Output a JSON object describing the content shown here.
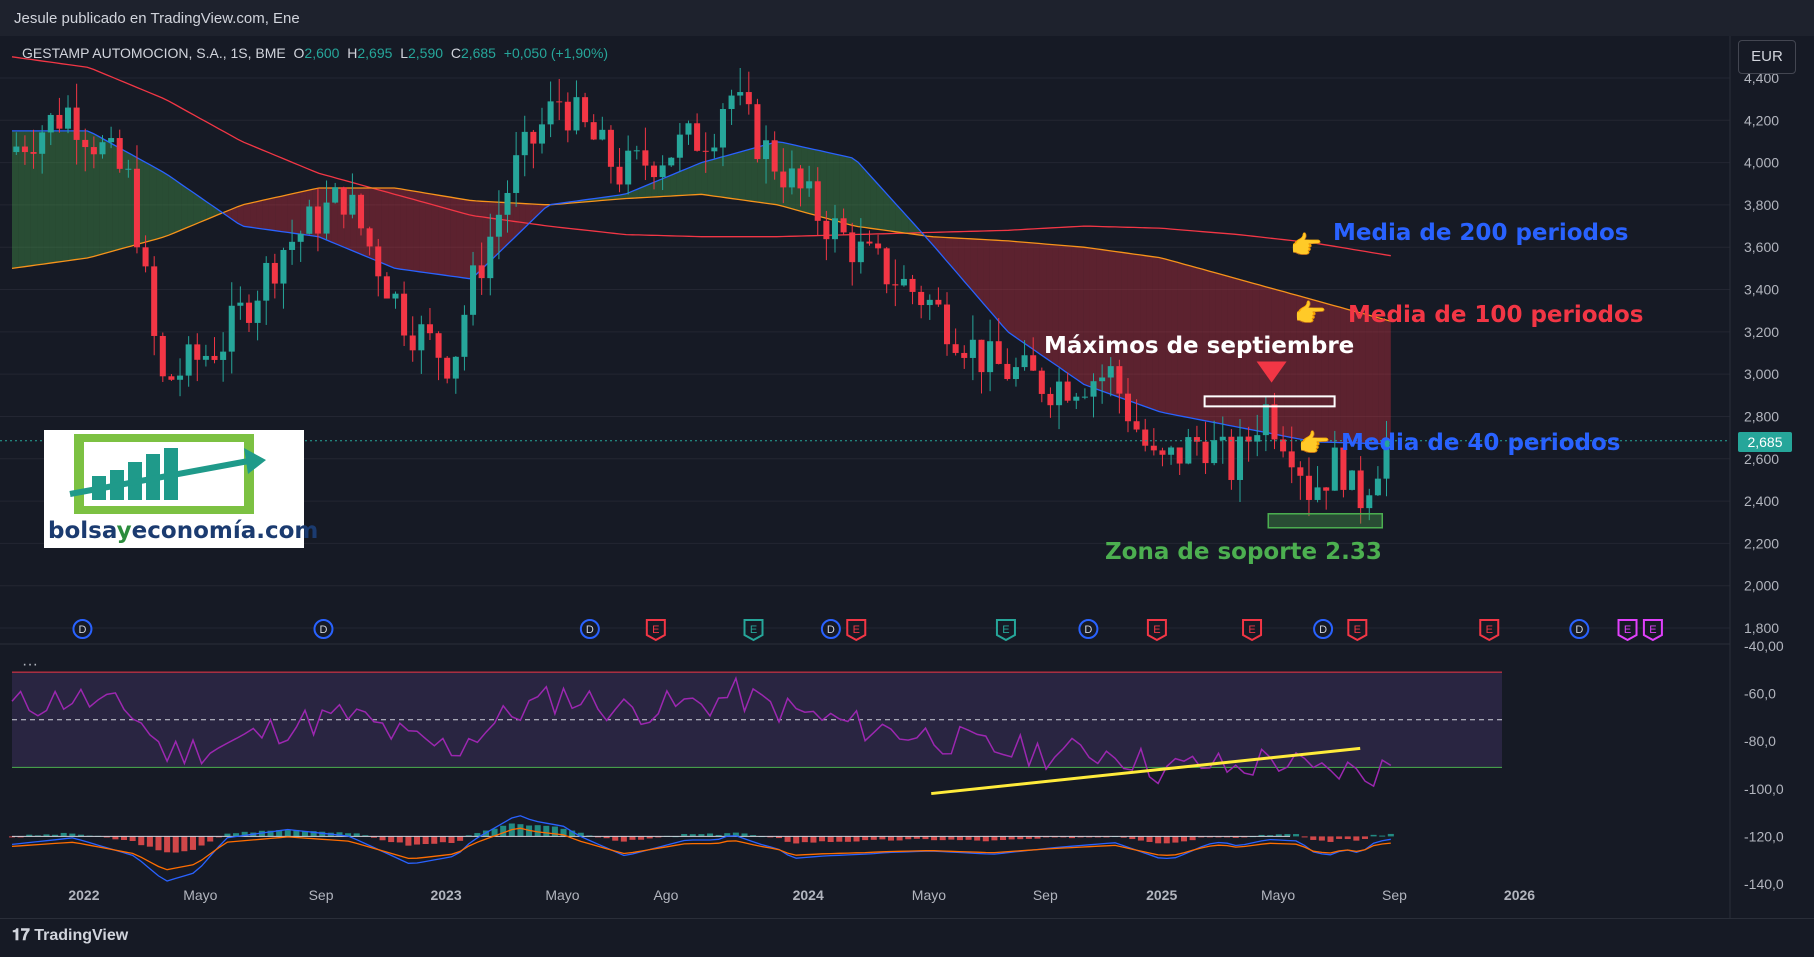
{
  "header": {
    "published": "Jesule publicado en TradingView.com, Ene"
  },
  "legend": {
    "symbol": "GESTAMP AUTOMOCION, S.A., 1S, BME",
    "open_label": "O",
    "open": "2,600",
    "high_label": "H",
    "high": "2,695",
    "low_label": "L",
    "low": "2,590",
    "close_label": "C",
    "close": "2,685",
    "change": "+0,050 (+1,90%)"
  },
  "currency": "EUR",
  "last_price": "2,685",
  "annotations": {
    "ma200": "Media de 200 periodos",
    "ma100": "Media de 100 periodos",
    "ma40": "Media de 40 periodos",
    "sept_max": "Máximos de septiembre",
    "support": "Zona de soporte 2.33"
  },
  "logo": {
    "brand_a": "bolsa",
    "brand_y": "y",
    "brand_b": "economía",
    "brand_c": ".com"
  },
  "footer": {
    "tradingview": "TradingView"
  },
  "colors": {
    "up": "#26a69a",
    "down": "#f23645",
    "ma40": "#2962ff",
    "ma100": "#f7931a",
    "ma200": "#f23645",
    "rsi": "#9c27b0",
    "trend": "#ffeb3b"
  },
  "chart_data": {
    "type": "candlestick",
    "title": "GESTAMP AUTOMOCION, S.A., 1S, BME",
    "x_ticks": [
      "2022",
      "Mayo",
      "Sep",
      "2023",
      "Mayo",
      "Ago",
      "2024",
      "Mayo",
      "Sep",
      "2025",
      "Mayo",
      "Sep",
      "2026"
    ],
    "y_ticks": [
      "4,400",
      "4,200",
      "4,000",
      "3,800",
      "3,600",
      "3,400",
      "3,200",
      "3,000",
      "2,800",
      "2,600",
      "2,400",
      "2,200",
      "2,000",
      "1,800"
    ],
    "ylim": [
      1.75,
      4.45
    ],
    "indicator_ticks": [
      "-40,00",
      "-60,0",
      "-80,0",
      "-100,0",
      "-120,0",
      "-140,0"
    ],
    "price_path_x": [
      0,
      0.04,
      0.08,
      0.1,
      0.14,
      0.18,
      0.22,
      0.26,
      0.29,
      0.3,
      0.33,
      0.36,
      0.4,
      0.46,
      0.47,
      0.49,
      0.53,
      0.56,
      0.6,
      0.64,
      0.68,
      0.72,
      0.75,
      0.78,
      0.8,
      0.82,
      0.84,
      0.85,
      0.87,
      0.88,
      0.9
    ],
    "price_path_y": [
      4.05,
      4.25,
      3.9,
      2.95,
      3.15,
      3.6,
      3.85,
      3.25,
      3.05,
      3.35,
      3.95,
      4.3,
      3.95,
      4.15,
      4.35,
      4.1,
      3.75,
      3.55,
      3.35,
      3.05,
      2.95,
      3.0,
      2.55,
      2.7,
      2.55,
      2.85,
      2.65,
      2.45,
      2.6,
      2.38,
      2.68
    ],
    "ma40_x": [
      0,
      0.05,
      0.1,
      0.15,
      0.2,
      0.25,
      0.3,
      0.35,
      0.4,
      0.45,
      0.5,
      0.55,
      0.6,
      0.65,
      0.7,
      0.75,
      0.8,
      0.85,
      0.9
    ],
    "ma40_y": [
      4.15,
      4.15,
      3.95,
      3.7,
      3.65,
      3.5,
      3.45,
      3.8,
      3.85,
      4.0,
      4.1,
      4.02,
      3.62,
      3.2,
      2.95,
      2.82,
      2.75,
      2.68,
      2.67
    ],
    "ma100_x": [
      0,
      0.05,
      0.1,
      0.15,
      0.2,
      0.25,
      0.3,
      0.35,
      0.4,
      0.45,
      0.5,
      0.55,
      0.6,
      0.65,
      0.7,
      0.75,
      0.8,
      0.85,
      0.9
    ],
    "ma100_y": [
      3.5,
      3.55,
      3.65,
      3.8,
      3.88,
      3.88,
      3.82,
      3.8,
      3.83,
      3.85,
      3.8,
      3.7,
      3.65,
      3.63,
      3.6,
      3.55,
      3.45,
      3.35,
      3.25
    ],
    "ma200_x": [
      0,
      0.05,
      0.1,
      0.15,
      0.2,
      0.25,
      0.3,
      0.35,
      0.4,
      0.45,
      0.5,
      0.55,
      0.6,
      0.65,
      0.7,
      0.75,
      0.8,
      0.85,
      0.9
    ],
    "ma200_y": [
      4.5,
      4.45,
      4.3,
      4.1,
      3.95,
      3.85,
      3.75,
      3.7,
      3.66,
      3.65,
      3.65,
      3.66,
      3.67,
      3.68,
      3.7,
      3.69,
      3.66,
      3.62,
      3.56
    ],
    "rsi_trend_x": [
      0.6,
      0.88
    ],
    "rsi_trend_y": [
      -102,
      -83
    ]
  }
}
